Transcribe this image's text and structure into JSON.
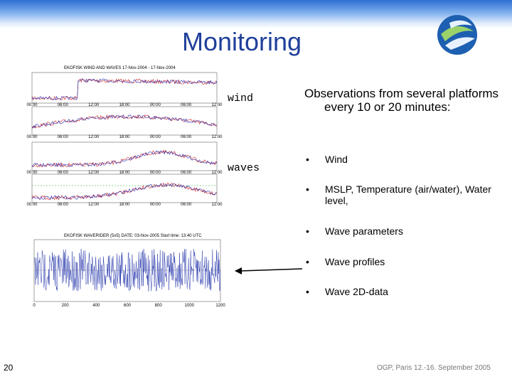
{
  "header": {
    "title": "Monitoring"
  },
  "figure_labels": {
    "wind": "wind",
    "waves": "waves"
  },
  "observations": {
    "heading": "Observations from several platforms every 10 or 20 minutes:",
    "bullets": [
      "Wind",
      "MSLP, Temperature (air/water), Water level,",
      "Wave parameters",
      "Wave profiles",
      "Wave 2D-data"
    ]
  },
  "plots": {
    "time_series": {
      "title": "EKOFISK WIND AND WAVES  17-Nov-2004 - 17-Nov-2004",
      "x_ticks": [
        "00:00",
        "06:00",
        "12:00",
        "18:00",
        "00:00",
        "06:00",
        "12:00"
      ]
    },
    "wave_profile": {
      "title": "EKOFISK WAVERIDER (5x5)  DATE: 03-Nov-2005  Start time: 13:40 UTC",
      "x_ticks": [
        "0",
        "200",
        "400",
        "600",
        "800",
        "1000",
        "1200"
      ]
    }
  },
  "footer": {
    "page_number": "20",
    "event": "OGP, Paris 12.-16. September 2005"
  }
}
